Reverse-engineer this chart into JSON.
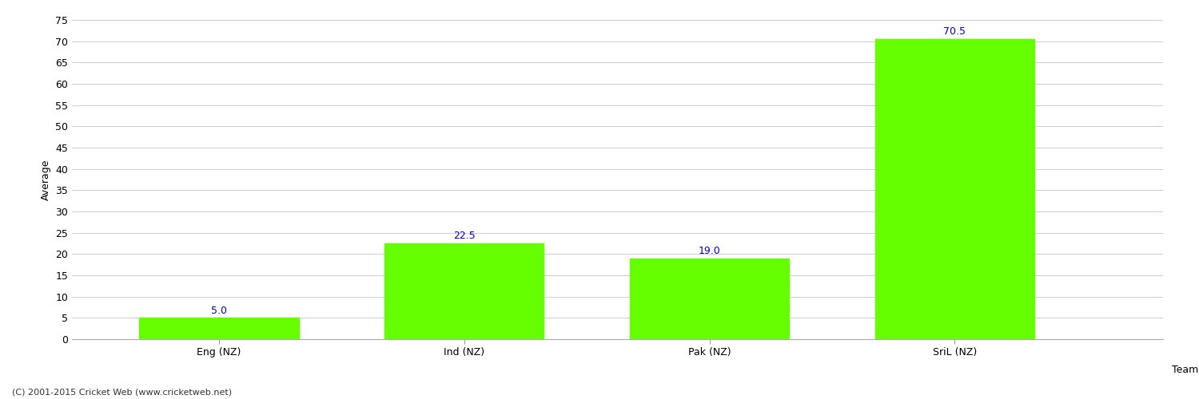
{
  "categories": [
    "Eng (NZ)",
    "Ind (NZ)",
    "Pak (NZ)",
    "SriL (NZ)"
  ],
  "values": [
    5.0,
    22.5,
    19.0,
    70.5
  ],
  "bar_color": "#66ff00",
  "bar_edge_color": "#66ff00",
  "xlabel": "Team",
  "ylabel": "Average",
  "ylim": [
    0,
    75
  ],
  "yticks": [
    0,
    5,
    10,
    15,
    20,
    25,
    30,
    35,
    40,
    45,
    50,
    55,
    60,
    65,
    70,
    75
  ],
  "annotation_color": "#0000cc",
  "annotation_fontsize": 9,
  "ylabel_fontsize": 9,
  "xlabel_fontsize": 9,
  "tick_fontsize": 9,
  "background_color": "#ffffff",
  "grid_color": "#cccccc",
  "footer_text": "(C) 2001-2015 Cricket Web (www.cricketweb.net)",
  "footer_fontsize": 8,
  "footer_color": "#333333"
}
